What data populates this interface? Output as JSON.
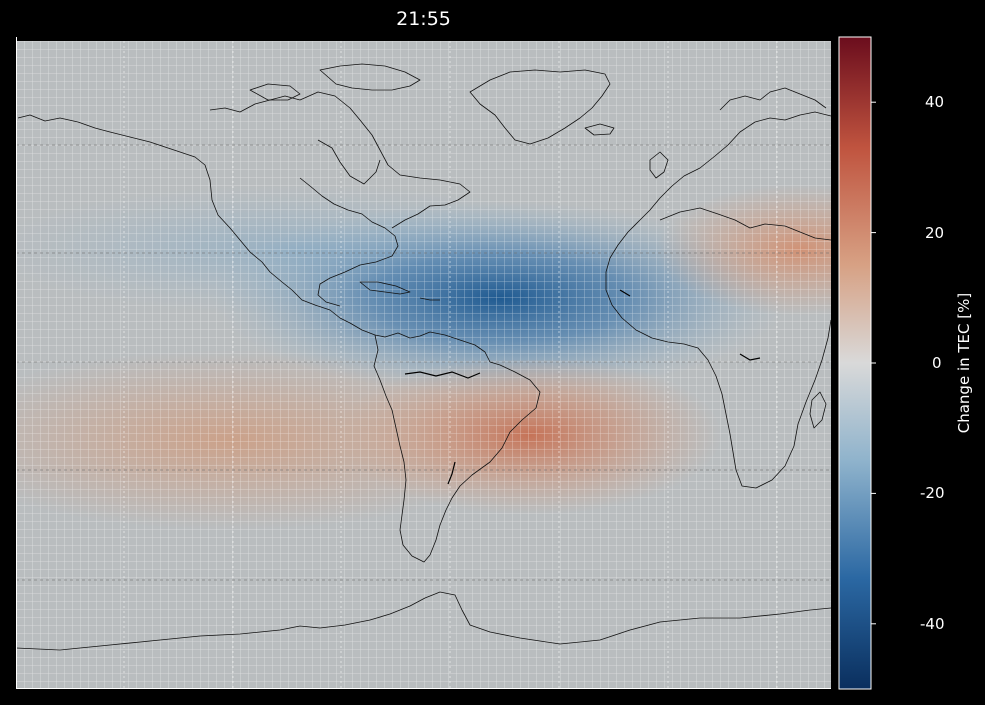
{
  "title": "21:55",
  "colorbar": {
    "label": "Change in TEC [%]",
    "min": -50,
    "max": 50,
    "ticks": [
      {
        "value": 40,
        "label": "40"
      },
      {
        "value": 20,
        "label": "20"
      },
      {
        "value": 0,
        "label": "0"
      },
      {
        "value": -20,
        "label": "-20"
      },
      {
        "value": -40,
        "label": "-40"
      }
    ],
    "colormap": [
      "#0a2f5e",
      "#2b68a3",
      "#8fb3cc",
      "#d9d9d9",
      "#d7a184",
      "#c0543f",
      "#6b0d1d"
    ]
  },
  "map": {
    "background_color": "#b9b9b9",
    "grid": true,
    "features": [
      {
        "name": "negative-anomaly-atlantic",
        "value": -37
      },
      {
        "name": "positive-anomaly-south-america",
        "value": 18
      },
      {
        "name": "positive-anomaly-south-pacific",
        "value": 8
      },
      {
        "name": "positive-anomaly-north-africa",
        "value": 14
      },
      {
        "name": "negative-anomaly-north-america",
        "value": -12
      }
    ]
  }
}
